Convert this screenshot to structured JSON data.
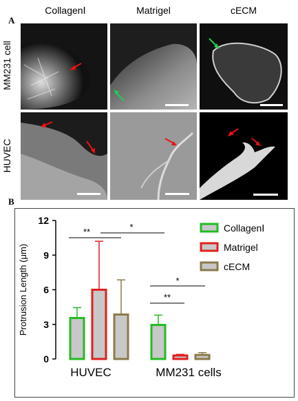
{
  "figure": {
    "panel_a_label": "A",
    "panel_b_label": "B",
    "columns": [
      "CollagenⅠ",
      "Matrigel",
      "cECM"
    ],
    "rows": [
      "MM231 cell",
      "HUVEC"
    ]
  },
  "colors": {
    "collagen": "#22bb22",
    "matrigel": "#e02020",
    "cecm": "#8a7a4a",
    "bar_fill": "#c8c8c8",
    "arrow_red": "#ee1111",
    "arrow_green": "#22cc55"
  },
  "chart_data": {
    "type": "bar",
    "categories": [
      "HUVEC",
      "MM231 cells"
    ],
    "ylabel": "Protrusion Length (μm)",
    "ylim": [
      0,
      12
    ],
    "yticks": [
      0,
      3,
      6,
      9,
      12
    ],
    "series": [
      {
        "name": "CollagenⅠ",
        "values": [
          3.55,
          2.95
        ],
        "errors": [
          0.9,
          0.85
        ]
      },
      {
        "name": "Matrigel",
        "values": [
          6.0,
          0.3
        ],
        "errors": [
          4.2,
          0.1
        ]
      },
      {
        "name": "cECM",
        "values": [
          3.85,
          0.35
        ],
        "errors": [
          3.0,
          0.2
        ]
      }
    ],
    "significance": [
      {
        "label": "**",
        "group": "HUVEC"
      },
      {
        "label": "*",
        "group": "HUVEC vs MM231"
      },
      {
        "label": "*",
        "group": "MM231 cells"
      },
      {
        "label": "**",
        "group": "MM231 cells"
      }
    ],
    "legend_position": "top-right",
    "grid": false
  }
}
